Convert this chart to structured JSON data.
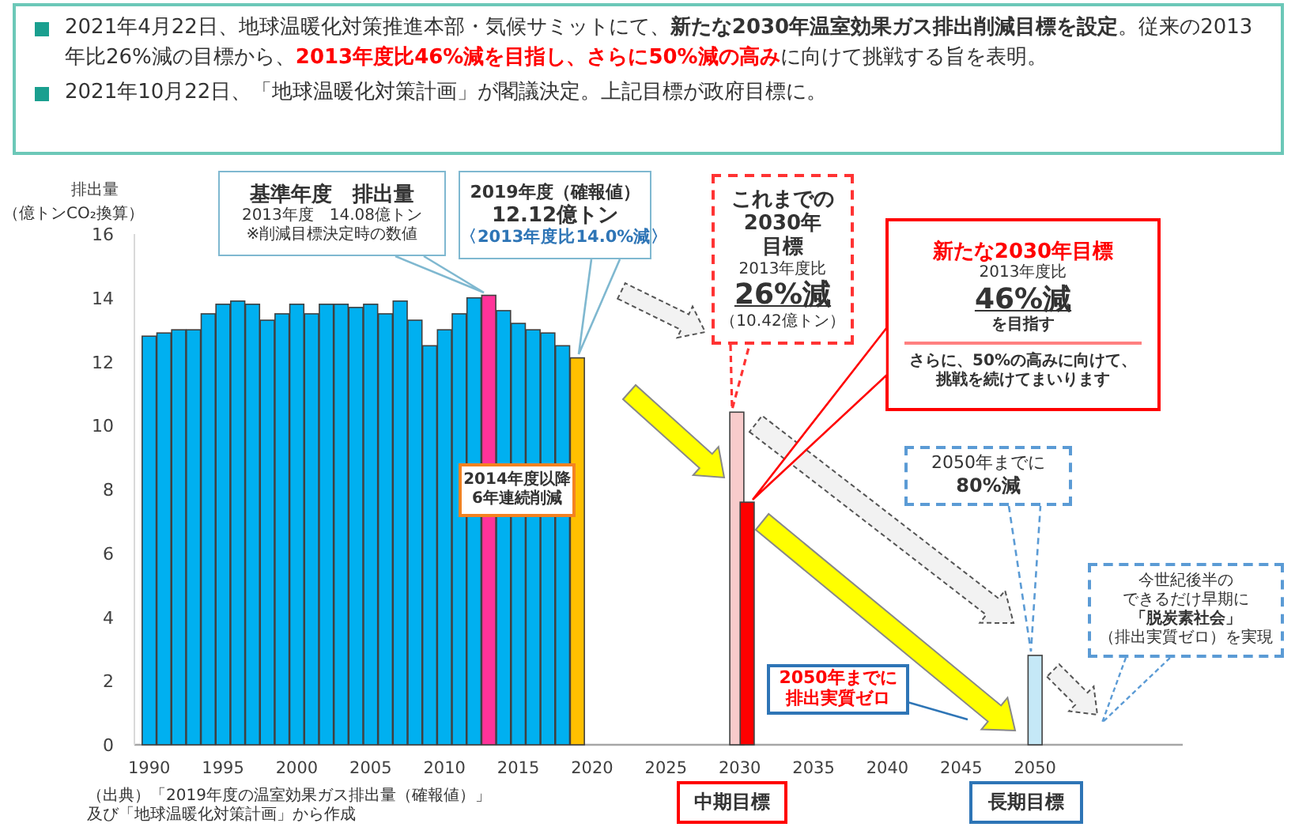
{
  "chart_data": {
    "type": "bar",
    "ylabel": "排出量",
    "xlim": [
      1989,
      2060
    ],
    "xticks": [
      1990,
      1995,
      2000,
      2005,
      2010,
      2015,
      2020,
      2025,
      2030,
      2035,
      2040,
      2045,
      2050
    ],
    "ylim": [
      0,
      16
    ],
    "yticks": [
      0,
      2,
      4,
      6,
      8,
      10,
      12,
      14,
      16
    ],
    "grid": false,
    "series": [
      {
        "x": [
          1990,
          1991,
          1992,
          1993,
          1994,
          1995,
          1996,
          1997,
          1998,
          1999,
          2000,
          2001,
          2002,
          2003,
          2004,
          2005,
          2006,
          2007,
          2008,
          2009,
          2010,
          2011,
          2012,
          2013,
          2014,
          2015,
          2016,
          2017,
          2018,
          2019
        ],
        "values": [
          12.8,
          12.9,
          13.0,
          13.0,
          13.5,
          13.8,
          13.9,
          13.8,
          13.3,
          13.5,
          13.8,
          13.5,
          13.8,
          13.8,
          13.7,
          13.8,
          13.5,
          13.9,
          13.3,
          12.5,
          13.0,
          13.5,
          14.0,
          14.08,
          13.6,
          13.2,
          13.0,
          12.9,
          12.5,
          12.12
        ],
        "colors": [
          "#00b0f0",
          "#00b0f0",
          "#00b0f0",
          "#00b0f0",
          "#00b0f0",
          "#00b0f0",
          "#00b0f0",
          "#00b0f0",
          "#00b0f0",
          "#00b0f0",
          "#00b0f0",
          "#00b0f0",
          "#00b0f0",
          "#00b0f0",
          "#00b0f0",
          "#00b0f0",
          "#00b0f0",
          "#00b0f0",
          "#00b0f0",
          "#00b0f0",
          "#00b0f0",
          "#00b0f0",
          "#00b0f0",
          "#ff3399",
          "#00b0f0",
          "#00b0f0",
          "#00b0f0",
          "#00b0f0",
          "#00b0f0",
          "#ffc000"
        ]
      },
      {
        "x": [
          2029.8
        ],
        "values": [
          10.42
        ],
        "color": "#f8cbcb"
      },
      {
        "x": [
          2030.5
        ],
        "values": [
          7.6
        ],
        "color": "#ff0000"
      },
      {
        "x": [
          2050
        ],
        "values": [
          2.8
        ],
        "color": "#c5e8f7"
      }
    ],
    "annotations": [
      "2021年4月22日、地球温暖化対策推進本部・気候サミットにて、**新たな2030年温室効果ガス排出削減目標を設定**。従来の2013年比26%減の目標から、**2013年度比46%減を目指し、さらに50%減の高み**に向けて挑戦する旨を表明。",
      "2021年10月22日、「地球温暖化対策計画」が閣議決定。上記目標が政府目標に。",
      "（億トンCO₂換算）",
      "基準年度　排出量",
      "2013年度　14.08億トン",
      "※削減目標決定時の数値",
      "2019年度（確報値）",
      "12.12億トン",
      "〈2013年度比14.0%減〉",
      "2014年度以降",
      "6年連続削減",
      "これまでの",
      "2030年",
      "目標",
      "2013年度比",
      "26%減",
      "（10.42億トン）",
      "新たな2030年目標",
      "2013年度比",
      "46%減",
      "を目指す",
      "さらに、50%の高みに向けて、",
      "挑戦を続けてまいります",
      "2050年までに",
      "80%減",
      "2050年までに",
      "排出実質ゼロ",
      "今世紀後半の",
      "できるだけ早期に",
      "「脱炭素社会」",
      "（排出実質ゼロ）を実現",
      "中期目標",
      "長期目標",
      "（出典）「2019年度の温室効果ガス排出量（確報値）」",
      "及び「地球温暖化対策計画」から作成"
    ]
  }
}
